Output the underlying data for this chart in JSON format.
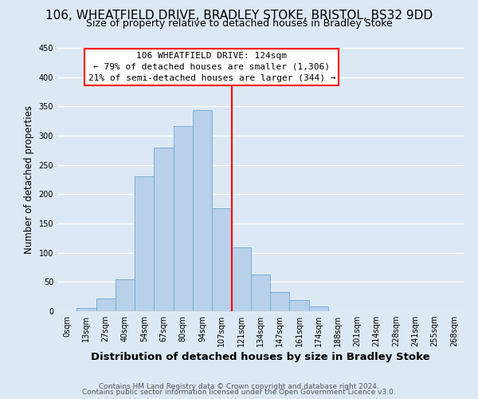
{
  "title": "106, WHEATFIELD DRIVE, BRADLEY STOKE, BRISTOL, BS32 9DD",
  "subtitle": "Size of property relative to detached houses in Bradley Stoke",
  "xlabel": "Distribution of detached houses by size in Bradley Stoke",
  "ylabel": "Number of detached properties",
  "bar_labels": [
    "0sqm",
    "13sqm",
    "27sqm",
    "40sqm",
    "54sqm",
    "67sqm",
    "80sqm",
    "94sqm",
    "107sqm",
    "121sqm",
    "134sqm",
    "147sqm",
    "161sqm",
    "174sqm",
    "188sqm",
    "201sqm",
    "214sqm",
    "228sqm",
    "241sqm",
    "255sqm",
    "268sqm"
  ],
  "bar_values": [
    0,
    6,
    22,
    54,
    230,
    280,
    316,
    343,
    176,
    109,
    63,
    33,
    19,
    8,
    0,
    0,
    0,
    0,
    0,
    0,
    0
  ],
  "bar_color": "#b8d0ea",
  "bar_edge_color": "#7aadd4",
  "vline_x_index": 8,
  "vline_color": "red",
  "annotation_title": "106 WHEATFIELD DRIVE: 124sqm",
  "annotation_line1": "← 79% of detached houses are smaller (1,306)",
  "annotation_line2": "21% of semi-detached houses are larger (344) →",
  "annotation_box_color": "#ffffff",
  "annotation_box_edge": "red",
  "ylim": [
    0,
    450
  ],
  "footer1": "Contains HM Land Registry data © Crown copyright and database right 2024.",
  "footer2": "Contains public sector information licensed under the Open Government Licence v3.0.",
  "bg_color": "#dce9f5",
  "plot_bg_color": "#dce9f5",
  "title_fontsize": 11,
  "subtitle_fontsize": 9,
  "xlabel_fontsize": 9.5,
  "ylabel_fontsize": 8.5,
  "tick_fontsize": 7,
  "annotation_fontsize": 8,
  "footer_fontsize": 6.5
}
